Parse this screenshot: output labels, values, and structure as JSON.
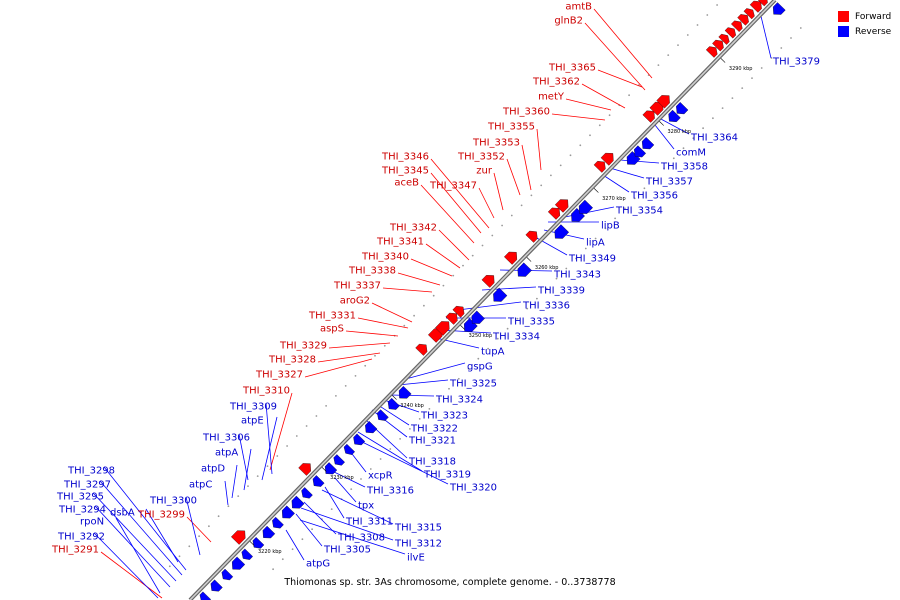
{
  "caption": "Thiomonas sp. str. 3As chromosome, complete genome. - 0..3738778",
  "legend": [
    {
      "label": "Forward",
      "color": "#ff0000"
    },
    {
      "label": "Reverse",
      "color": "#0000ff"
    }
  ],
  "colors": {
    "forward": "#ff0000",
    "reverse": "#0000ff",
    "backbone": "#888888"
  },
  "ticks": [
    "3220 kbp",
    "3230 kbp",
    "3240 kbp",
    "3250 kbp",
    "3260 kbp",
    "3270 kbp",
    "3280 kbp",
    "3290 kbp"
  ],
  "forward_genes": [
    "amtB",
    "glnB2",
    "THI_3365",
    "THI_3362",
    "metY",
    "THI_3360",
    "THI_3355",
    "THI_3353",
    "THI_3352",
    "zur",
    "THI_3346",
    "THI_3345",
    "aceB",
    "THI_3347",
    "THI_3342",
    "THI_3341",
    "THI_3340",
    "THI_3338",
    "THI_3337",
    "aroG2",
    "THI_3331",
    "aspS",
    "THI_3329",
    "THI_3328",
    "THI_3327",
    "THI_3310",
    "THI_3299",
    "THI_3291"
  ],
  "reverse_genes": [
    "THI_3379",
    "THI_3364",
    "comM",
    "THI_3358",
    "THI_3357",
    "THI_3356",
    "THI_3354",
    "lipB",
    "lipA",
    "THI_3349",
    "THI_3343",
    "THI_3339",
    "THI_3336",
    "THI_3335",
    "THI_3334",
    "tupA",
    "gspG",
    "THI_3325",
    "THI_3324",
    "THI_3323",
    "THI_3322",
    "THI_3321",
    "THI_3318",
    "THI_3319",
    "THI_3320",
    "xcpR",
    "THI_3316",
    "tpx",
    "THI_3311",
    "THI_3315",
    "THI_3308",
    "THI_3312",
    "THI_3305",
    "ilvE",
    "atpG",
    "THI_3309",
    "atpE",
    "THI_3306",
    "atpA",
    "atpD",
    "atpC",
    "THI_3298",
    "THI_3297",
    "THI_3295",
    "dsbA",
    "THI_3294",
    "THI_3300",
    "rpoN",
    "THI_3292"
  ]
}
